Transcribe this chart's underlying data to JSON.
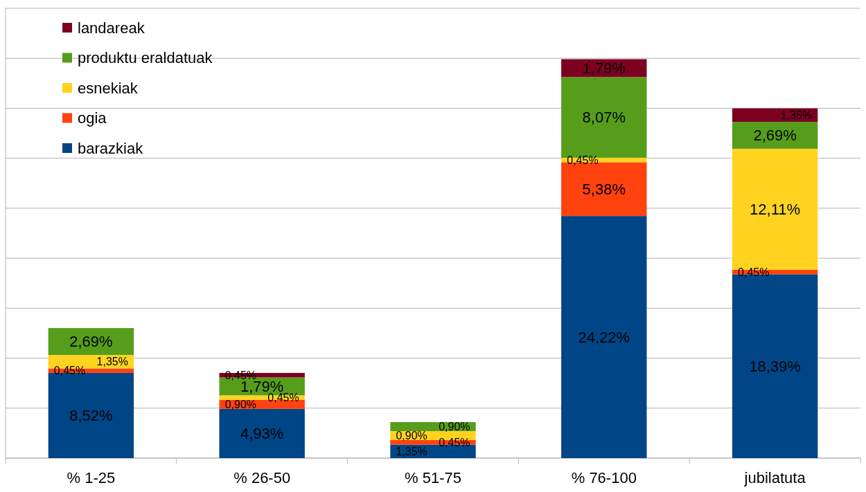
{
  "chart_data": {
    "type": "bar",
    "stacked": true,
    "categories": [
      "% 1-25",
      "% 26-50",
      "% 51-75",
      "% 76-100",
      "jubilatuta"
    ],
    "series": [
      {
        "name": "barazkiak",
        "color": "#004586",
        "values": [
          8.52,
          4.93,
          1.35,
          24.22,
          18.39
        ],
        "value_labels": [
          "8,52%",
          "4,93%",
          "1,35%",
          "24,22%",
          "18,39%"
        ]
      },
      {
        "name": "ogia",
        "color": "#ff420e",
        "values": [
          0.45,
          0.9,
          0.45,
          5.38,
          0.45
        ],
        "value_labels": [
          "0,45%",
          "0,90%",
          "0,45%",
          "5,38%",
          "0,45%"
        ]
      },
      {
        "name": "esnekiak",
        "color": "#ffd320",
        "values": [
          1.35,
          0.45,
          0.9,
          0.45,
          12.11
        ],
        "value_labels": [
          "1,35%",
          "0,45%",
          "0,90%",
          "0,45%",
          "12,11%"
        ]
      },
      {
        "name": "produktu eraldatuak",
        "color": "#579d1c",
        "values": [
          2.69,
          1.79,
          0.9,
          8.07,
          2.69
        ],
        "value_labels": [
          "2,69%",
          "1,79%",
          "0,90%",
          "8,07%",
          "2,69%"
        ]
      },
      {
        "name": "landareak",
        "color": "#7e0021",
        "values": [
          null,
          0.45,
          null,
          1.79,
          1.35
        ],
        "value_labels": [
          null,
          "0,45%",
          null,
          "1,79%",
          "1,35%"
        ]
      }
    ],
    "ylim": [
      0,
      45
    ],
    "yticks": [
      {
        "value": 0,
        "label": null
      },
      {
        "value": 5,
        "label": null
      },
      {
        "value": 10,
        "label": null
      },
      {
        "value": 15,
        "label": null
      },
      {
        "value": 20,
        "label": null
      },
      {
        "value": 25,
        "label": null
      },
      {
        "value": 30,
        "label": null
      },
      {
        "value": 35,
        "label": null
      },
      {
        "value": 40,
        "label": null
      },
      {
        "value": 45,
        "label": null
      }
    ],
    "grid": "y",
    "legend": "top left"
  }
}
